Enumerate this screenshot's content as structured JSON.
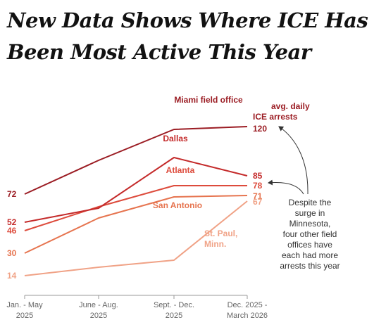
{
  "headline": {
    "line1": "New Data Shows Where ICE Has",
    "line2": "Been Most Active This Year"
  },
  "chart_data": {
    "type": "line",
    "categories": [
      {
        "line1": "Jan. - May",
        "line2": "2025"
      },
      {
        "line1": "June - Aug.",
        "line2": "2025"
      },
      {
        "line1": "Sept. - Dec.",
        "line2": "2025"
      },
      {
        "line1": "Dec. 2025 -",
        "line2": "March 2026"
      }
    ],
    "ylim": [
      0,
      140
    ],
    "series": [
      {
        "id": "miami",
        "name": "Miami field office",
        "color": "#9b1c23",
        "values": [
          72,
          96,
          118,
          120
        ],
        "start_label": "72",
        "end_label": "120"
      },
      {
        "id": "dallas",
        "name": "Dallas",
        "color": "#c42a2a",
        "values": [
          52,
          62,
          98,
          85
        ],
        "start_label": "52",
        "end_label": "85"
      },
      {
        "id": "atlanta",
        "name": "Atlanta",
        "color": "#dd4b3c",
        "values": [
          46,
          63,
          78,
          78
        ],
        "start_label": "46",
        "end_label": "78"
      },
      {
        "id": "sanantonio",
        "name": "San Antonio",
        "color": "#e6744f",
        "values": [
          30,
          55,
          70,
          71
        ],
        "start_label": "30",
        "end_label": "71"
      },
      {
        "id": "stpaul",
        "name": "St. Paul,\nMinn.",
        "color": "#f0a286",
        "values": [
          14,
          20,
          25,
          67
        ],
        "start_label": "14",
        "end_label": "67"
      }
    ],
    "annotations": {
      "unit_line1": "avg. daily",
      "unit_line2": "ICE arrests",
      "note": [
        "Despite the",
        "surge in",
        "Minnesota,",
        "four other field",
        "offices have",
        "each had more",
        "arrests this year"
      ]
    }
  }
}
